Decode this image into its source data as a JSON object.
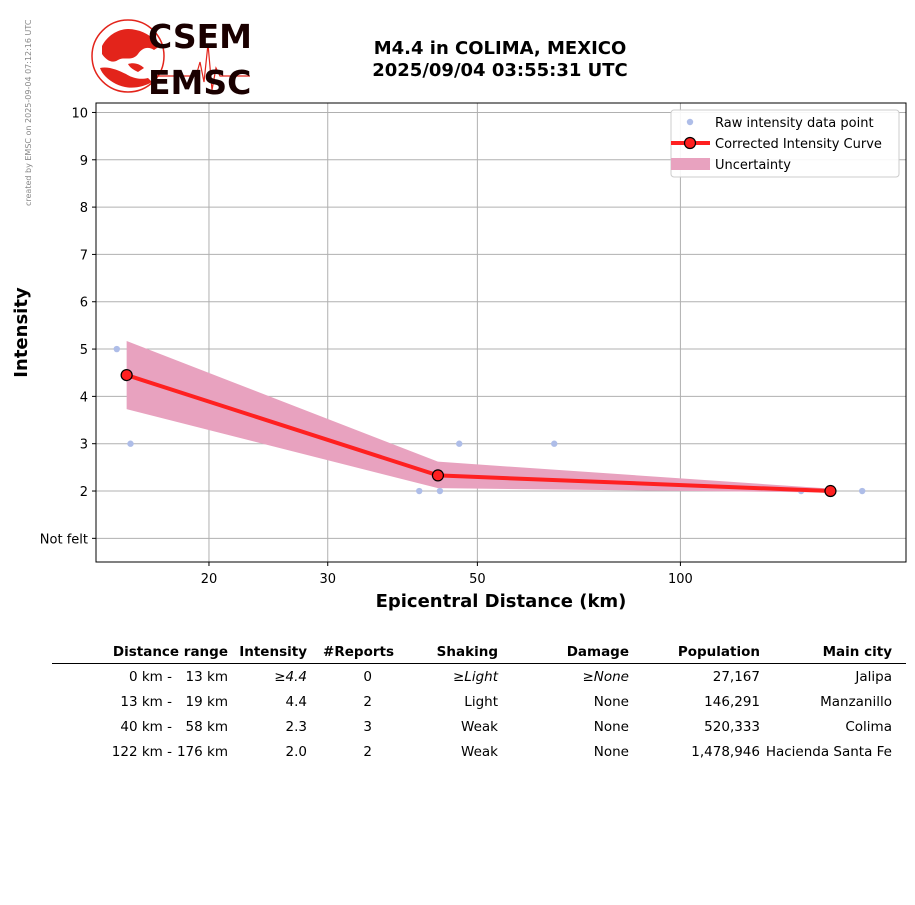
{
  "side_note": "created by EMSC on 2025-09-04 07:12:16 UTC",
  "logo": {
    "line1": "CSEM",
    "line2": "EMSC",
    "brand_red": "#e3241b",
    "text_color": "#1a0000"
  },
  "title": {
    "line1": "M4.4 in COLIMA, MEXICO",
    "line2": "2025/09/04 03:55:31 UTC"
  },
  "chart_data": {
    "type": "line",
    "xlabel": "Epicentral Distance (km)",
    "ylabel": "Intensity",
    "x_scale": "log",
    "xlim": [
      13.6,
      216
    ],
    "ylim": [
      0.5,
      10.2
    ],
    "x_ticks": [
      20,
      30,
      50,
      100
    ],
    "y_ticks": [
      {
        "value": 1,
        "label": "Not felt"
      },
      {
        "value": 2,
        "label": "2"
      },
      {
        "value": 3,
        "label": "3"
      },
      {
        "value": 4,
        "label": "4"
      },
      {
        "value": 5,
        "label": "5"
      },
      {
        "value": 6,
        "label": "6"
      },
      {
        "value": 7,
        "label": "7"
      },
      {
        "value": 8,
        "label": "8"
      },
      {
        "value": 9,
        "label": "9"
      },
      {
        "value": 10,
        "label": "10"
      }
    ],
    "grid": true,
    "legend_position": "top-right",
    "series": [
      {
        "name": "Raw intensity data point",
        "kind": "scatter",
        "color": "#aebde8",
        "points": [
          [
            14.6,
            5
          ],
          [
            15.3,
            3
          ],
          [
            41,
            2
          ],
          [
            44,
            2
          ],
          [
            47,
            3
          ],
          [
            65,
            3
          ],
          [
            151,
            2
          ],
          [
            186,
            2
          ]
        ]
      },
      {
        "name": "Corrected Intensity Curve",
        "kind": "line",
        "color": "#ff2020",
        "x": [
          15.1,
          43.7,
          166.9
        ],
        "y": [
          4.45,
          2.33,
          2.0
        ]
      },
      {
        "name": "Uncertainty",
        "kind": "band",
        "color": "#e8a2bf",
        "x": [
          15.1,
          43.7,
          166.9
        ],
        "upper": [
          5.17,
          2.62,
          2.05
        ],
        "lower": [
          3.73,
          2.06,
          1.97
        ]
      }
    ]
  },
  "table": {
    "headers": [
      "Distance range",
      "Intensity",
      "#Reports",
      "Shaking",
      "Damage",
      "Population",
      "Main city"
    ],
    "rows": [
      {
        "from": "0 km -",
        "to": "13 km",
        "intensity": "≥4.4",
        "reports": "0",
        "shaking": "≥Light",
        "damage": "≥None",
        "population": "27,167",
        "city": "Jalipa",
        "italic": true
      },
      {
        "from": "13 km -",
        "to": "19 km",
        "intensity": "4.4",
        "reports": "2",
        "shaking": "Light",
        "damage": "None",
        "population": "146,291",
        "city": "Manzanillo",
        "italic": false
      },
      {
        "from": "40 km -",
        "to": "58 km",
        "intensity": "2.3",
        "reports": "3",
        "shaking": "Weak",
        "damage": "None",
        "population": "520,333",
        "city": "Colima",
        "italic": false
      },
      {
        "from": "122 km -",
        "to": "176 km",
        "intensity": "2.0",
        "reports": "2",
        "shaking": "Weak",
        "damage": "None",
        "population": "1,478,946",
        "city": "Hacienda Santa Fe",
        "italic": false
      }
    ]
  }
}
